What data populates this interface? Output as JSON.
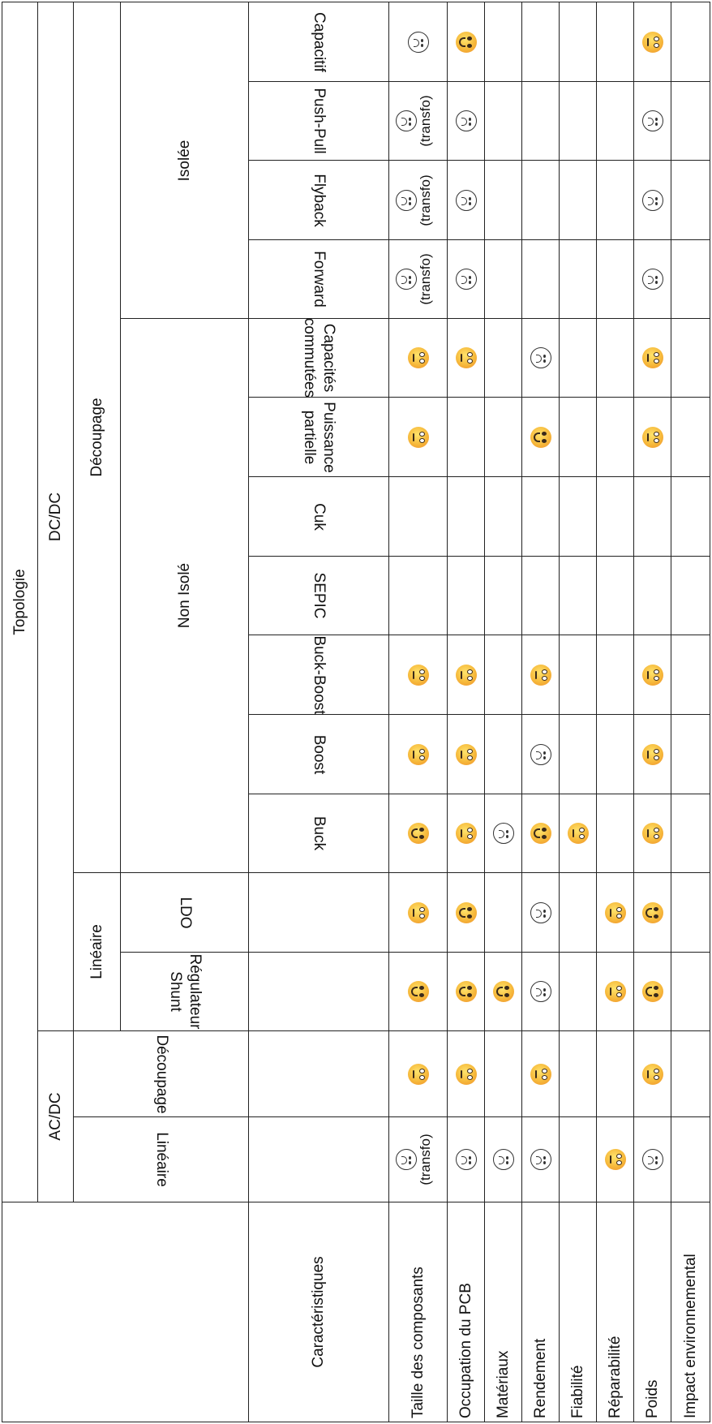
{
  "table": {
    "header_topologie": "Topologie",
    "header_acdc": "AC/DC",
    "header_dcdc": "DC/DC",
    "header_lineaire_group": "Linéaire",
    "header_decoupage_group": "Découpage",
    "header_non_isole": "Non Isolé",
    "header_isolee": "Isolée",
    "header_caracteristiques": "Caractéristiques",
    "note_transfo": "(transfo)",
    "columns": [
      "Linéaire",
      "Découpage",
      "Régulateur Shunt",
      "LDO",
      "Buck",
      "Boost",
      "Buck-Boost",
      "SEPIC",
      "Cuk",
      "Puissance partielle",
      "Capacités commutées",
      "Forward",
      "Flyback",
      "Push-Pull",
      "Capacitif"
    ],
    "rows": [
      "Taille des composants",
      "Occupation du PCB",
      "Matériaux",
      "Rendement",
      "Fiabilité",
      "Réparabilité",
      "Poids",
      "Impact environnemental"
    ],
    "cells": [
      [
        "sad*",
        "neutral",
        "happy",
        "neutral",
        "happy",
        "neutral",
        "neutral",
        "",
        "",
        "neutral",
        "neutral",
        "sad*",
        "sad*",
        "sad*",
        "sad"
      ],
      [
        "sad",
        "neutral",
        "happy",
        "happy",
        "neutral",
        "neutral",
        "neutral",
        "",
        "",
        "",
        "neutral",
        "sad",
        "sad",
        "sad",
        "happy"
      ],
      [
        "sad",
        "",
        "happy",
        "",
        "sad",
        "",
        "",
        "",
        "",
        "",
        "",
        "",
        "",
        "",
        ""
      ],
      [
        "sad",
        "neutral",
        "sad",
        "sad",
        "happy",
        "sad",
        "neutral",
        "",
        "",
        "happy",
        "sad",
        "",
        "",
        "",
        ""
      ],
      [
        "",
        "",
        "",
        "",
        "neutral",
        "",
        "",
        "",
        "",
        "",
        "",
        "",
        "",
        "",
        ""
      ],
      [
        "neutral",
        "",
        "neutral",
        "neutral",
        "",
        "",
        "",
        "",
        "",
        "",
        "",
        "",
        "",
        "",
        ""
      ],
      [
        "sad",
        "neutral",
        "happy",
        "happy",
        "neutral",
        "neutral",
        "neutral",
        "",
        "",
        "neutral",
        "neutral",
        "sad",
        "sad",
        "sad",
        "neutral"
      ],
      [
        "",
        "",
        "",
        "",
        "",
        "",
        "",
        "",
        "",
        "",
        "",
        "",
        "",
        "",
        ""
      ]
    ]
  },
  "icons": {
    "happy": "smiling-face-icon",
    "neutral": "neutral-face-icon",
    "sad": "frowning-face-icon"
  }
}
